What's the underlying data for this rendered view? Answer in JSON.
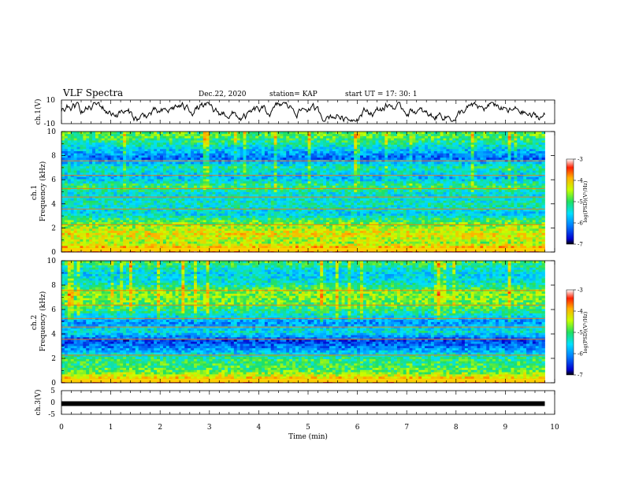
{
  "header": {
    "title": "VLF Spectra",
    "date": "Dec.22, 2020",
    "station": "station= KAP",
    "start": "start  UT  =   17: 30: 1"
  },
  "chart_data": [
    {
      "type": "line",
      "name": "ch1-waveform",
      "ylabel": "ch.1(V)",
      "xlim": [
        0,
        10
      ],
      "ylim": [
        -10,
        10
      ],
      "yticks": [
        "10",
        "-10"
      ],
      "note_series_shape": "noisy trace oscillating roughly between -5 and 5 V",
      "approx_range": [
        -5,
        5
      ]
    },
    {
      "type": "heatmap",
      "name": "ch1-spectrogram",
      "ylabel": "ch.1\nFrequency (kHz)",
      "xlim": [
        0,
        10
      ],
      "ylim": [
        0,
        10
      ],
      "yticks": [
        "0",
        "2",
        "4",
        "6",
        "8",
        "10"
      ],
      "colorbar": {
        "label": "log(PSD)(V²/Hz)",
        "range": [
          -7,
          -3
        ],
        "ticks": [
          "-3",
          "-4",
          "-5",
          "-6",
          "-7"
        ]
      },
      "band_profile": [
        {
          "f": 0.2,
          "v": -3.6
        },
        {
          "f": 0.8,
          "v": -4.6
        },
        {
          "f": 1.5,
          "v": -4.2
        },
        {
          "f": 2.5,
          "v": -4.8
        },
        {
          "f": 3.2,
          "v": -5.6
        },
        {
          "f": 4.0,
          "v": -5.3
        },
        {
          "f": 4.8,
          "v": -5.5
        },
        {
          "f": 5.5,
          "v": -5.0
        },
        {
          "f": 6.2,
          "v": -5.8
        },
        {
          "f": 7.0,
          "v": -5.2
        },
        {
          "f": 7.8,
          "v": -6.2
        },
        {
          "f": 8.6,
          "v": -5.6
        },
        {
          "f": 9.5,
          "v": -4.9
        }
      ]
    },
    {
      "type": "heatmap",
      "name": "ch2-spectrogram",
      "ylabel": "ch.2\nFrequency (kHz)",
      "xlim": [
        0,
        10
      ],
      "ylim": [
        0,
        10
      ],
      "yticks": [
        "0",
        "2",
        "4",
        "6",
        "8",
        "10"
      ],
      "colorbar": {
        "label": "log(PSD)(V²/Hz)",
        "range": [
          -7,
          -3
        ],
        "ticks": [
          "-3",
          "-4",
          "-5",
          "-6",
          "-7"
        ]
      },
      "band_profile": [
        {
          "f": 0.2,
          "v": -3.8
        },
        {
          "f": 1.0,
          "v": -4.9
        },
        {
          "f": 2.0,
          "v": -5.1
        },
        {
          "f": 2.8,
          "v": -6.0
        },
        {
          "f": 3.5,
          "v": -6.4
        },
        {
          "f": 4.2,
          "v": -5.4
        },
        {
          "f": 5.0,
          "v": -6.0
        },
        {
          "f": 5.8,
          "v": -5.2
        },
        {
          "f": 6.6,
          "v": -4.8
        },
        {
          "f": 7.4,
          "v": -4.6
        },
        {
          "f": 8.2,
          "v": -5.4
        },
        {
          "f": 9.0,
          "v": -5.6
        },
        {
          "f": 9.8,
          "v": -5.0
        }
      ]
    },
    {
      "type": "line",
      "name": "ch3-waveform",
      "ylabel": "ch.3(V)",
      "xlim": [
        0,
        10
      ],
      "ylim": [
        -5,
        5
      ],
      "yticks": [
        "5",
        "0",
        "-5"
      ],
      "approx_value": -0.5
    }
  ],
  "xaxis": {
    "label": "Time (min)",
    "ticks": [
      "0",
      "1",
      "2",
      "3",
      "4",
      "5",
      "6",
      "7",
      "8",
      "9",
      "10"
    ],
    "data_end": 9.8
  }
}
